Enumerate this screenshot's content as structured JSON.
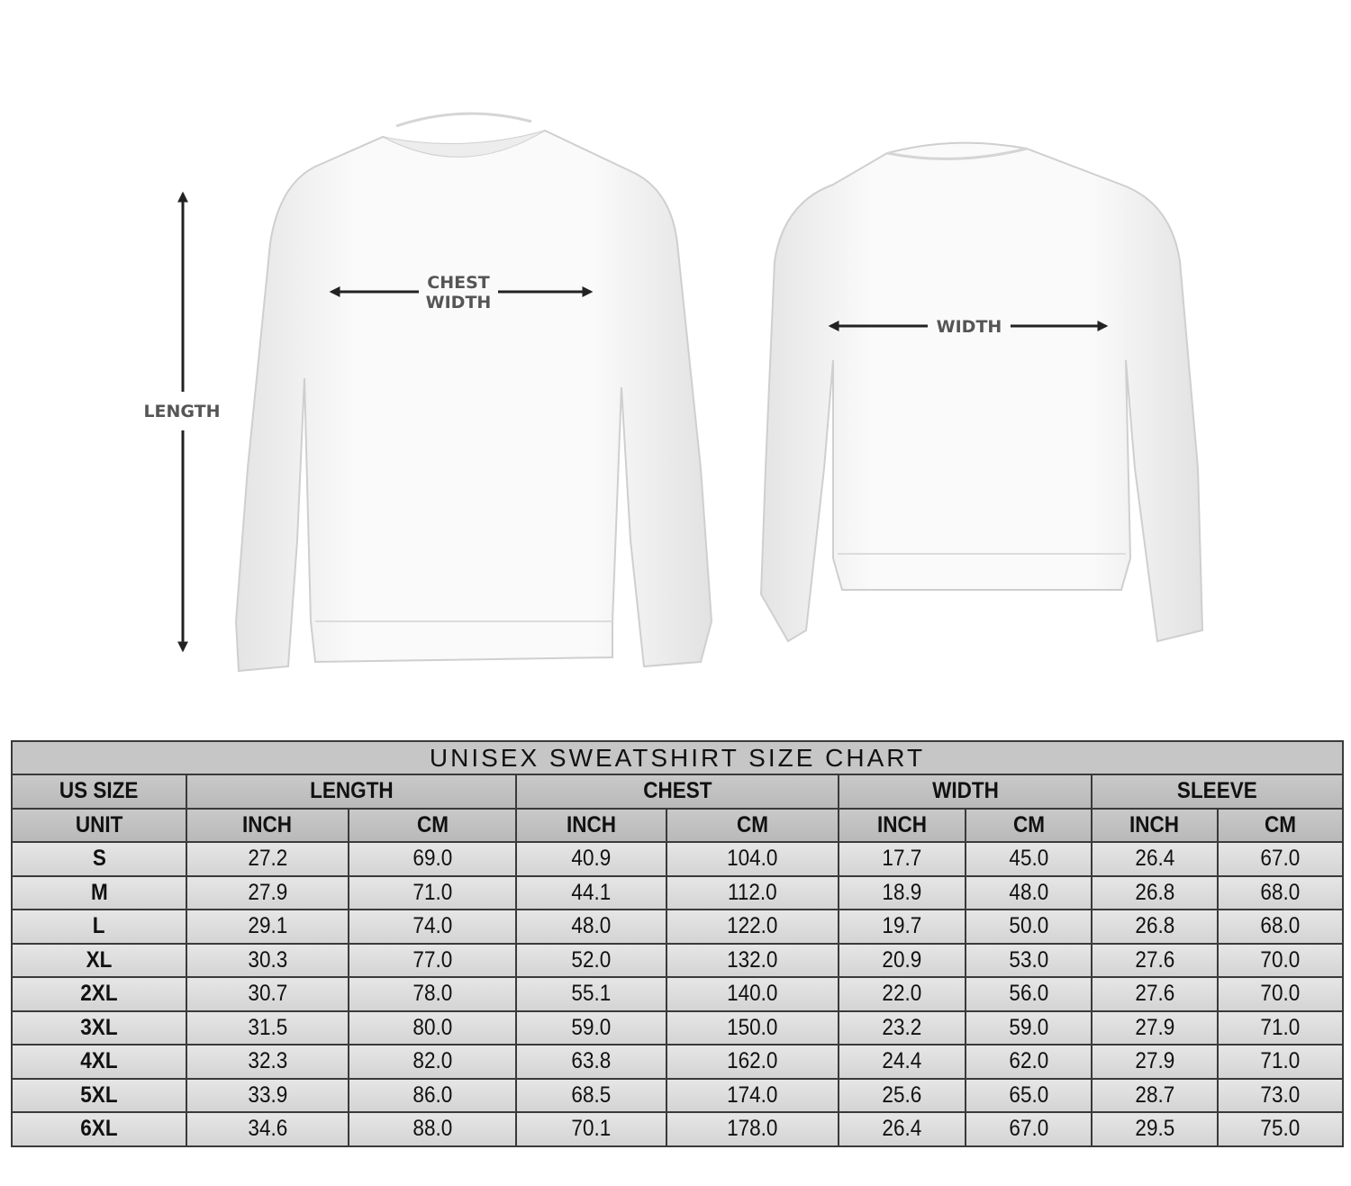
{
  "illustration": {
    "length_label": "LENGTH",
    "chest_label_line1": "CHEST",
    "chest_label_line2": "WIDTH",
    "width_label": "WIDTH"
  },
  "table": {
    "title": "UNISEX SWEATSHIRT SIZE CHART",
    "size_header": "US SIZE",
    "unit_header": "UNIT",
    "groups": [
      "LENGTH",
      "CHEST",
      "WIDTH",
      "SLEEVE"
    ],
    "units": [
      "INCH",
      "CM",
      "INCH",
      "CM",
      "INCH",
      "CM",
      "INCH",
      "CM"
    ],
    "rows": [
      {
        "size": "S",
        "values": [
          "27.2",
          "69.0",
          "40.9",
          "104.0",
          "17.7",
          "45.0",
          "26.4",
          "67.0"
        ]
      },
      {
        "size": "M",
        "values": [
          "27.9",
          "71.0",
          "44.1",
          "112.0",
          "18.9",
          "48.0",
          "26.8",
          "68.0"
        ]
      },
      {
        "size": "L",
        "values": [
          "29.1",
          "74.0",
          "48.0",
          "122.0",
          "19.7",
          "50.0",
          "26.8",
          "68.0"
        ]
      },
      {
        "size": "XL",
        "values": [
          "30.3",
          "77.0",
          "52.0",
          "132.0",
          "20.9",
          "53.0",
          "27.6",
          "70.0"
        ]
      },
      {
        "size": "2XL",
        "values": [
          "30.7",
          "78.0",
          "55.1",
          "140.0",
          "22.0",
          "56.0",
          "27.6",
          "70.0"
        ]
      },
      {
        "size": "3XL",
        "values": [
          "31.5",
          "80.0",
          "59.0",
          "150.0",
          "23.2",
          "59.0",
          "27.9",
          "71.0"
        ]
      },
      {
        "size": "4XL",
        "values": [
          "32.3",
          "82.0",
          "63.8",
          "162.0",
          "24.4",
          "62.0",
          "27.9",
          "71.0"
        ]
      },
      {
        "size": "5XL",
        "values": [
          "33.9",
          "86.0",
          "68.5",
          "174.0",
          "25.6",
          "65.0",
          "28.7",
          "73.0"
        ]
      },
      {
        "size": "6XL",
        "values": [
          "34.6",
          "88.0",
          "70.1",
          "178.0",
          "26.4",
          "67.0",
          "29.5",
          "75.0"
        ]
      }
    ]
  }
}
